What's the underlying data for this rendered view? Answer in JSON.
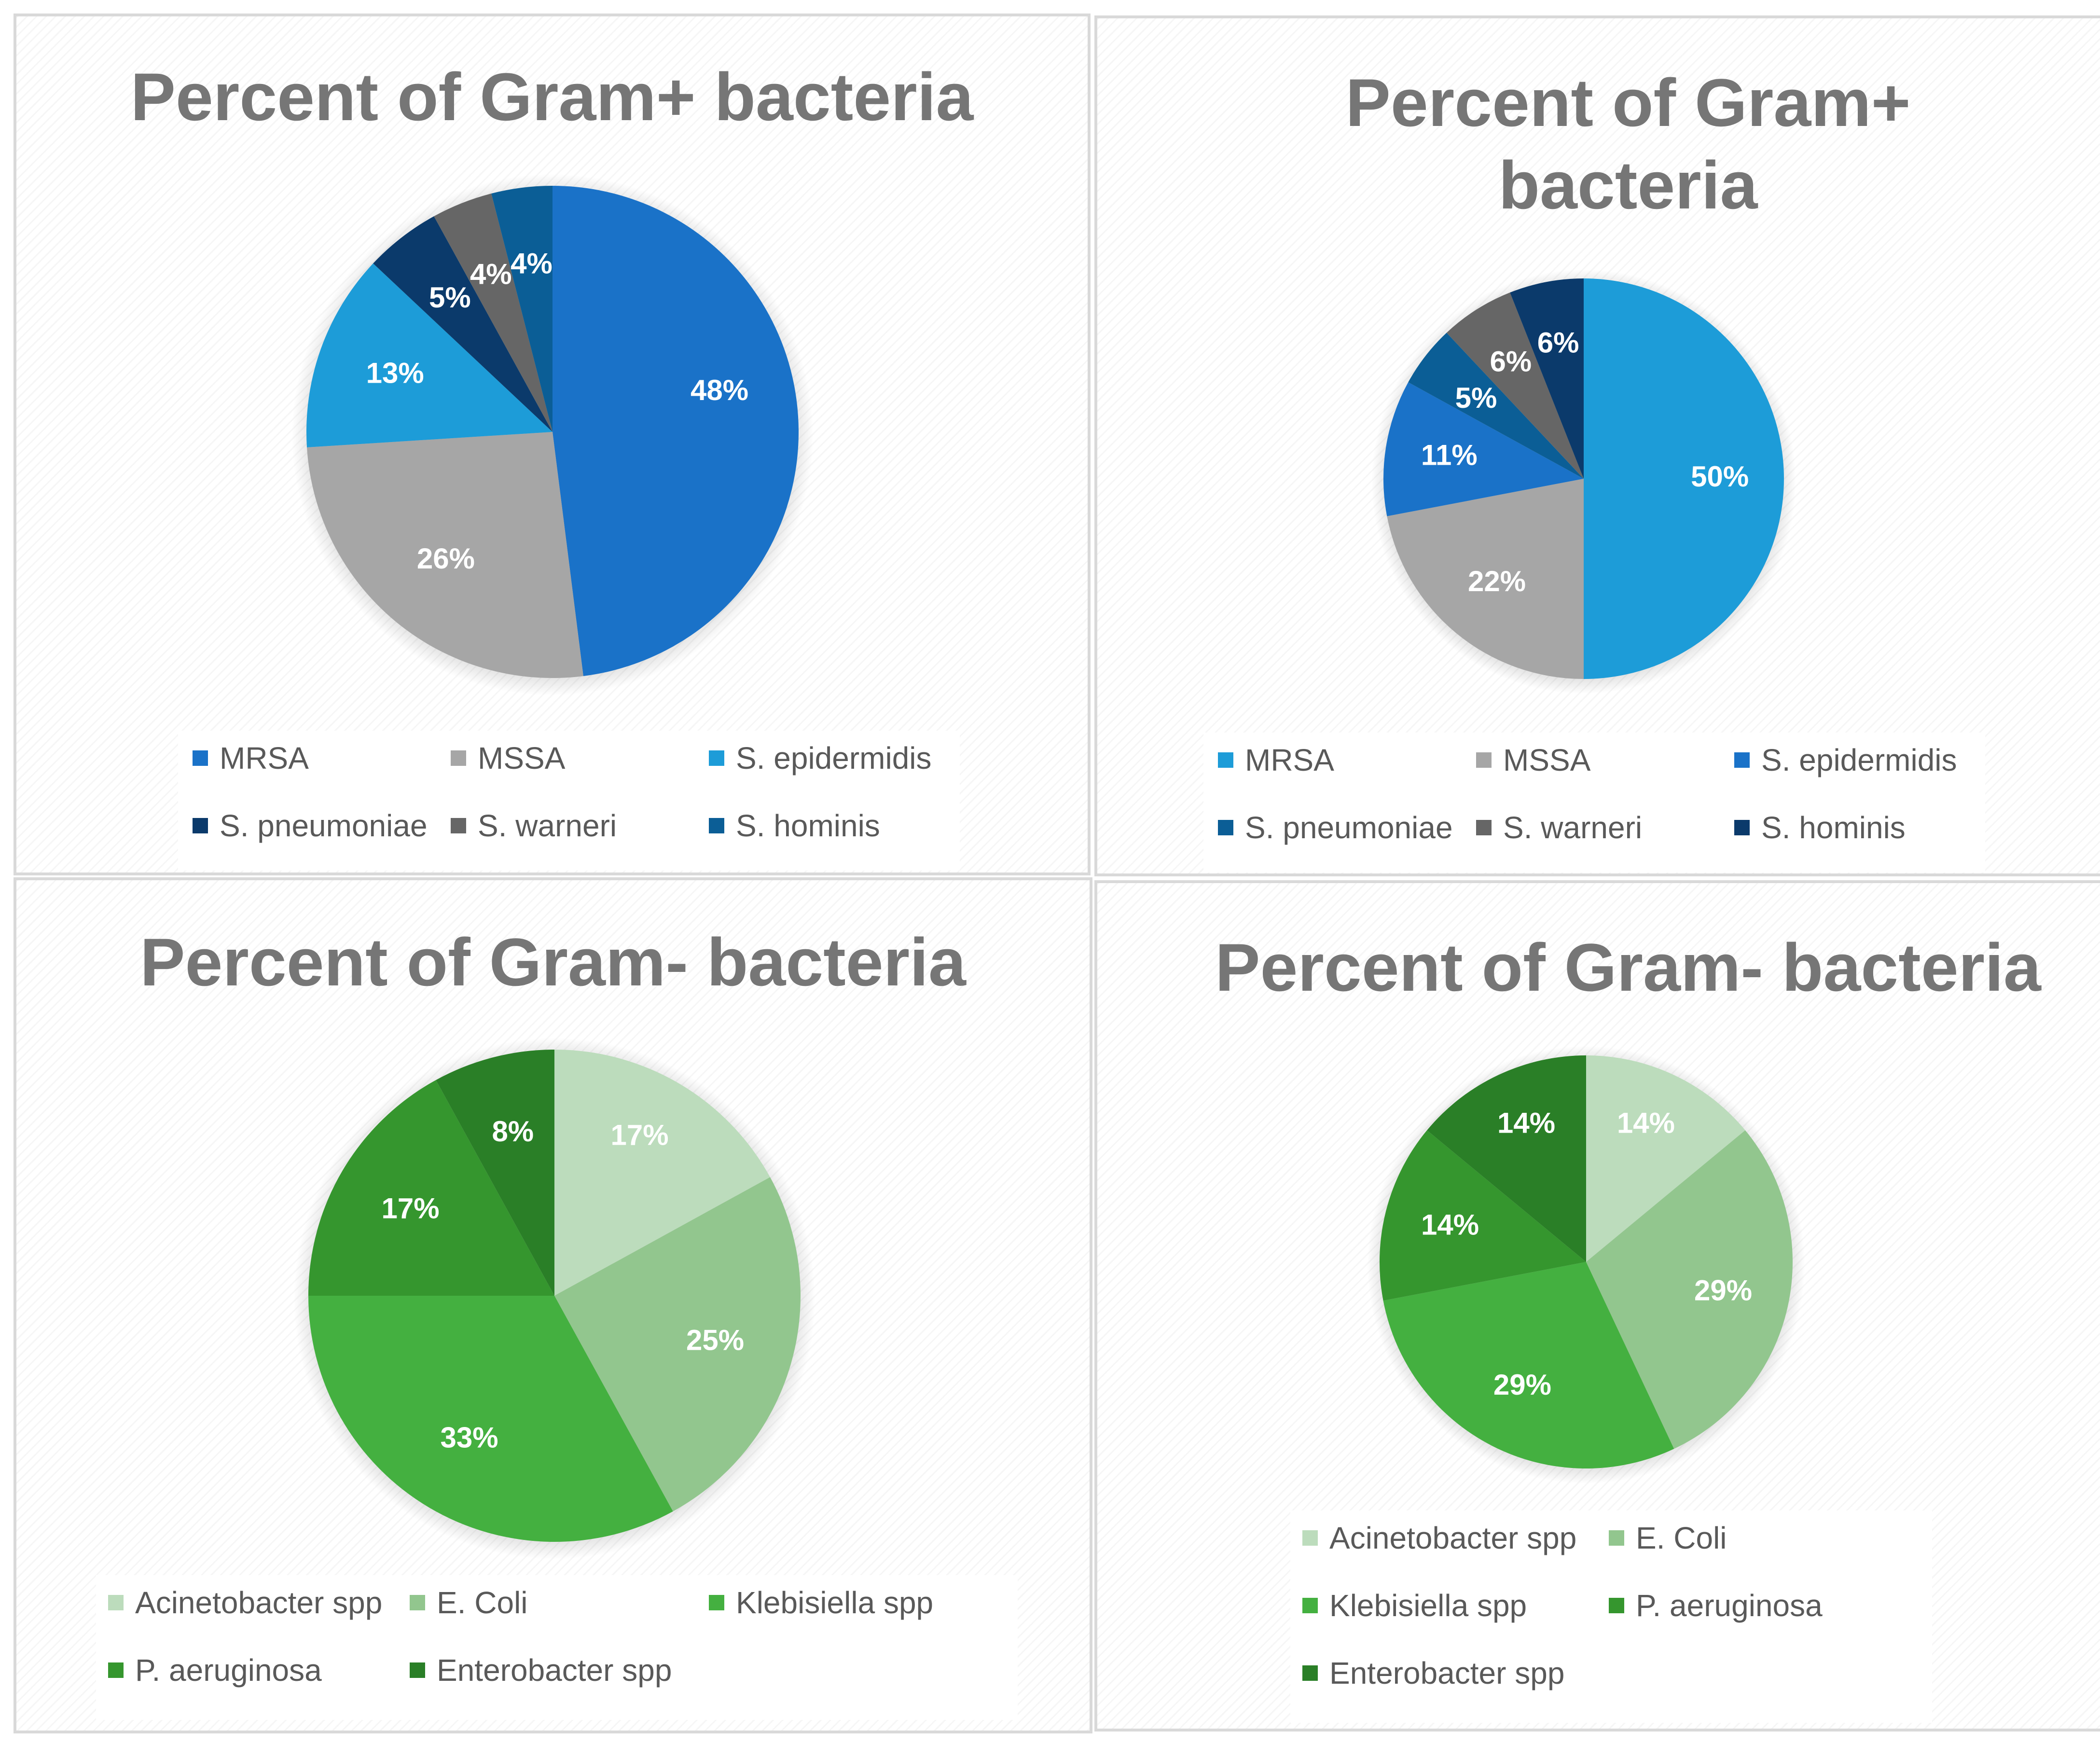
{
  "chart_data": [
    {
      "type": "pie",
      "title": "Percent of Gram+ bacteria",
      "categories": [
        "MRSA",
        "MSSA",
        "S. epidermidis",
        "S. pneumoniae",
        "S. warneri",
        "S. hominis"
      ],
      "values": [
        48,
        26,
        13,
        5,
        4,
        4
      ],
      "labels": [
        "48%",
        "26%",
        "13%",
        "5%",
        "4%",
        "4%"
      ],
      "colors": [
        "#1a72c8",
        "#a6a6a6",
        "#1d9cd8",
        "#0b3a6b",
        "#666666",
        "#0b5e96"
      ],
      "legend": "bottom"
    },
    {
      "type": "pie",
      "title": "Percent of Gram+ bacteria",
      "categories": [
        "MRSA",
        "MSSA",
        "S. epidermidis",
        "S. pneumoniae",
        "S. warneri",
        "S. hominis"
      ],
      "values": [
        50,
        22,
        11,
        5,
        6,
        6
      ],
      "labels": [
        "50%",
        "22%",
        "11%",
        "5%",
        "6%",
        "6%"
      ],
      "colors": [
        "#1d9cd8",
        "#a6a6a6",
        "#1a72c8",
        "#0b5e96",
        "#666666",
        "#0b3a6b"
      ],
      "legend": "bottom"
    },
    {
      "type": "pie",
      "title": "Percent of Gram- bacteria",
      "categories": [
        "Acinetobacter spp",
        "E. Coli",
        "Klebisiella spp",
        "P. aeruginosa",
        "Enterobacter spp"
      ],
      "values": [
        17,
        25,
        33,
        17,
        8
      ],
      "labels": [
        "17%",
        "25%",
        "33%",
        "17%",
        "8%"
      ],
      "colors": [
        "#bcdcbc",
        "#92c68e",
        "#44b040",
        "#35962e",
        "#2a7f27"
      ],
      "legend": "bottom"
    },
    {
      "type": "pie",
      "title": "Percent of Gram- bacteria",
      "categories": [
        "Acinetobacter spp",
        "E. Coli",
        "Klebisiella spp",
        "P. aeruginosa",
        "Enterobacter spp"
      ],
      "values": [
        14,
        29,
        29,
        14,
        14
      ],
      "labels": [
        "14%",
        "29%",
        "29%",
        "14%",
        "14%"
      ],
      "colors": [
        "#bcdcbc",
        "#92c68e",
        "#44b040",
        "#35962e",
        "#2a7f27"
      ],
      "legend": "bottom"
    }
  ]
}
